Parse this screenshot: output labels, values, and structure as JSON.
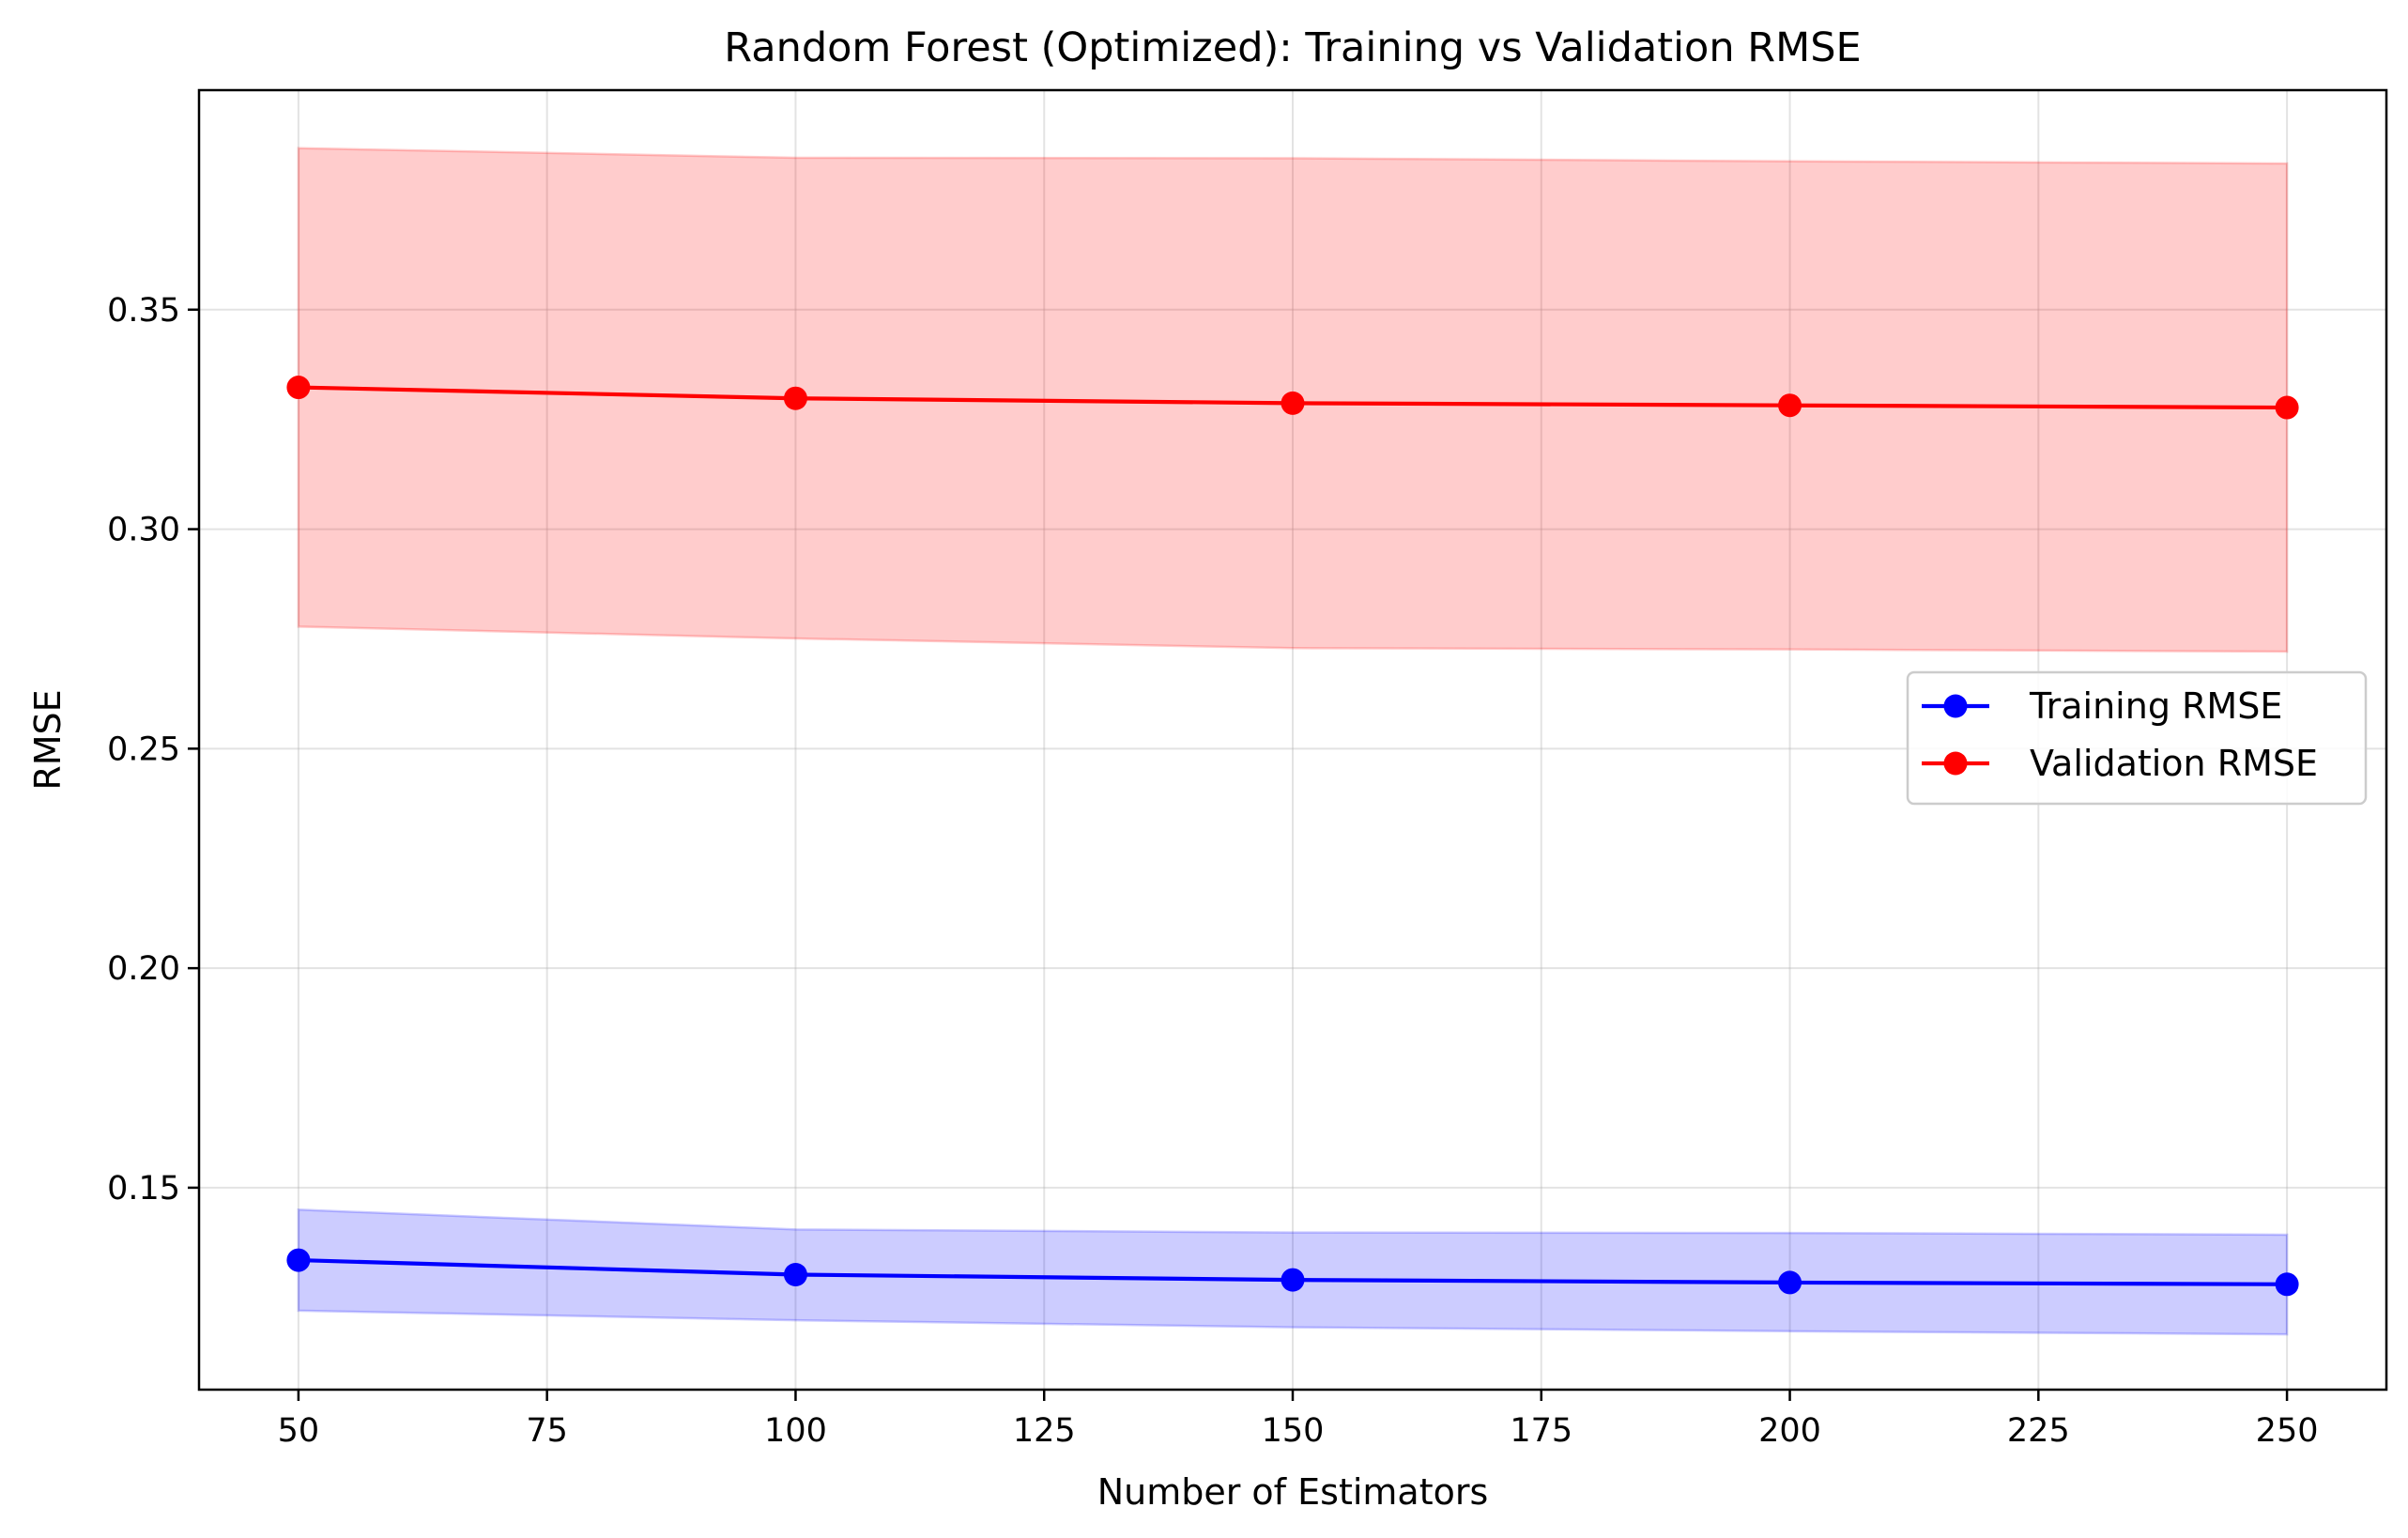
{
  "chart_data": {
    "type": "line",
    "title": "Random Forest (Optimized): Training vs Validation RMSE",
    "xlabel": "Number of Estimators",
    "ylabel": "RMSE",
    "x": [
      50,
      100,
      150,
      200,
      250
    ],
    "xlim": [
      40,
      260
    ],
    "ylim": [
      0.104,
      0.4
    ],
    "xticks": [
      "50",
      "75",
      "100",
      "125",
      "150",
      "175",
      "200",
      "225",
      "250"
    ],
    "yticks": [
      "0.15",
      "0.20",
      "0.25",
      "0.30",
      "0.35"
    ],
    "grid": true,
    "legend_position": "center-right",
    "series": [
      {
        "name": "Training RMSE",
        "color": "#0000ff",
        "band_color": "#0000ff",
        "values": [
          0.1335,
          0.1302,
          0.129,
          0.1284,
          0.128
        ],
        "upper": [
          0.145,
          0.1405,
          0.1398,
          0.1397,
          0.1393
        ],
        "lower": [
          0.122,
          0.1198,
          0.1182,
          0.1173,
          0.1166
        ]
      },
      {
        "name": "Validation RMSE",
        "color": "#ff0000",
        "band_color": "#ff0000",
        "values": [
          0.3323,
          0.3298,
          0.3287,
          0.3282,
          0.3277
        ],
        "upper": [
          0.3868,
          0.3846,
          0.3845,
          0.3838,
          0.3833
        ],
        "lower": [
          0.2778,
          0.2751,
          0.2729,
          0.2726,
          0.2721
        ]
      }
    ]
  }
}
